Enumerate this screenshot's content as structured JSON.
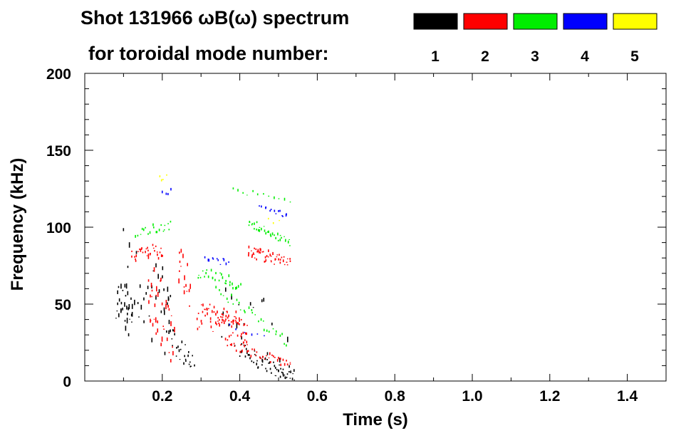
{
  "colors": {
    "background": "#ffffff",
    "axis": "#000000",
    "mode1": "#000000",
    "mode2": "#ff0000",
    "mode3": "#00ee00",
    "mode4": "#0000ff",
    "mode5": "#ffff00"
  },
  "chart_data": {
    "type": "scatter",
    "title": "Shot 131966 ωB(ω) spectrum",
    "legend_caption": "for toroidal mode number:",
    "xlabel": "Time (s)",
    "ylabel": "Frequency (kHz)",
    "xlim": [
      0.0,
      1.5
    ],
    "ylim": [
      0,
      200
    ],
    "x_ticks": [
      0.2,
      0.4,
      0.6,
      0.8,
      1.0,
      1.2,
      1.4
    ],
    "x_tick_labels": [
      "0.2",
      "0.4",
      "0.6",
      "0.8",
      "1.0",
      "1.2",
      "1.4"
    ],
    "y_ticks": [
      0,
      50,
      100,
      150,
      200
    ],
    "y_tick_labels": [
      "0",
      "50",
      "100",
      "150",
      "200"
    ],
    "legend_placement": "top-right",
    "legend": [
      {
        "label": "1",
        "color": "#000000"
      },
      {
        "label": "2",
        "color": "#ff0000"
      },
      {
        "label": "3",
        "color": "#00ee00"
      },
      {
        "label": "4",
        "color": "#0000ff"
      },
      {
        "label": "5",
        "color": "#ffff00"
      }
    ],
    "series": [
      {
        "name": "n=1",
        "color": "#000000",
        "segments": [
          {
            "x": [
              0.08,
              0.1,
              0.12
            ],
            "y": [
              52,
              48,
              40
            ],
            "spread": 14,
            "density": 28
          },
          {
            "x": [
              0.1,
              0.15,
              0.2,
              0.22
            ],
            "y": [
              70,
              60,
              45,
              35
            ],
            "spread": 28,
            "density": 40
          },
          {
            "x": [
              0.22,
              0.25,
              0.28
            ],
            "y": [
              28,
              18,
              10
            ],
            "spread": 8,
            "density": 26
          },
          {
            "x": [
              0.4,
              0.45,
              0.5,
              0.54
            ],
            "y": [
              20,
              12,
              7,
              2
            ],
            "spread": 5,
            "density": 60
          },
          {
            "x": [
              0.35,
              0.42,
              0.52
            ],
            "y": [
              50,
              40,
              30
            ],
            "spread": 25,
            "density": 22
          }
        ]
      },
      {
        "name": "n=2",
        "color": "#ff0000",
        "segments": [
          {
            "x": [
              0.12,
              0.16,
              0.2
            ],
            "y": [
              80,
              85,
              82
            ],
            "spread": 4,
            "density": 30
          },
          {
            "x": [
              0.16,
              0.19,
              0.23
            ],
            "y": [
              60,
              45,
              30
            ],
            "spread": 22,
            "density": 40
          },
          {
            "x": [
              0.24,
              0.27
            ],
            "y": [
              80,
              60
            ],
            "spread": 15,
            "density": 16
          },
          {
            "x": [
              0.29,
              0.34,
              0.38,
              0.42
            ],
            "y": [
              42,
              40,
              36,
              32
            ],
            "spread": 9,
            "density": 90
          },
          {
            "x": [
              0.36,
              0.42,
              0.48,
              0.53
            ],
            "y": [
              25,
              18,
              14,
              10
            ],
            "spread": 3,
            "density": 40
          },
          {
            "x": [
              0.42,
              0.47,
              0.53
            ],
            "y": [
              83,
              80,
              77
            ],
            "spread": 4,
            "density": 55
          }
        ]
      },
      {
        "name": "n=3",
        "color": "#00ee00",
        "segments": [
          {
            "x": [
              0.13,
              0.18,
              0.22
            ],
            "y": [
              93,
              98,
              100
            ],
            "spread": 4,
            "density": 20
          },
          {
            "x": [
              0.29,
              0.35,
              0.4
            ],
            "y": [
              70,
              66,
              62
            ],
            "spread": 4,
            "density": 30
          },
          {
            "x": [
              0.34,
              0.4,
              0.46,
              0.52
            ],
            "y": [
              60,
              48,
              36,
              25
            ],
            "spread": 3,
            "density": 30
          },
          {
            "x": [
              0.42,
              0.47,
              0.53
            ],
            "y": [
              102,
              97,
              90
            ],
            "spread": 3,
            "density": 35
          },
          {
            "x": [
              0.38,
              0.45,
              0.53
            ],
            "y": [
              123,
              120,
              115
            ],
            "spread": 2,
            "density": 12
          }
        ]
      },
      {
        "name": "n=4",
        "color": "#0000ff",
        "segments": [
          {
            "x": [
              0.31,
              0.34,
              0.37
            ],
            "y": [
              80,
              78,
              76
            ],
            "spread": 2,
            "density": 12
          },
          {
            "x": [
              0.45,
              0.49,
              0.52
            ],
            "y": [
              113,
              110,
              106
            ],
            "spread": 2,
            "density": 14
          },
          {
            "x": [
              0.2,
              0.22
            ],
            "y": [
              123,
              122
            ],
            "spread": 2,
            "density": 4
          },
          {
            "x": [
              0.37,
              0.42,
              0.46
            ],
            "y": [
              35,
              31,
              28
            ],
            "spread": 2,
            "density": 6
          }
        ]
      },
      {
        "name": "n=5",
        "color": "#ffff00",
        "segments": [
          {
            "x": [
              0.19,
              0.21
            ],
            "y": [
              130,
              134
            ],
            "spread": 3,
            "density": 4
          },
          {
            "x": [
              0.47,
              0.5
            ],
            "y": [
              105,
              103
            ],
            "spread": 2,
            "density": 3
          }
        ]
      }
    ]
  }
}
